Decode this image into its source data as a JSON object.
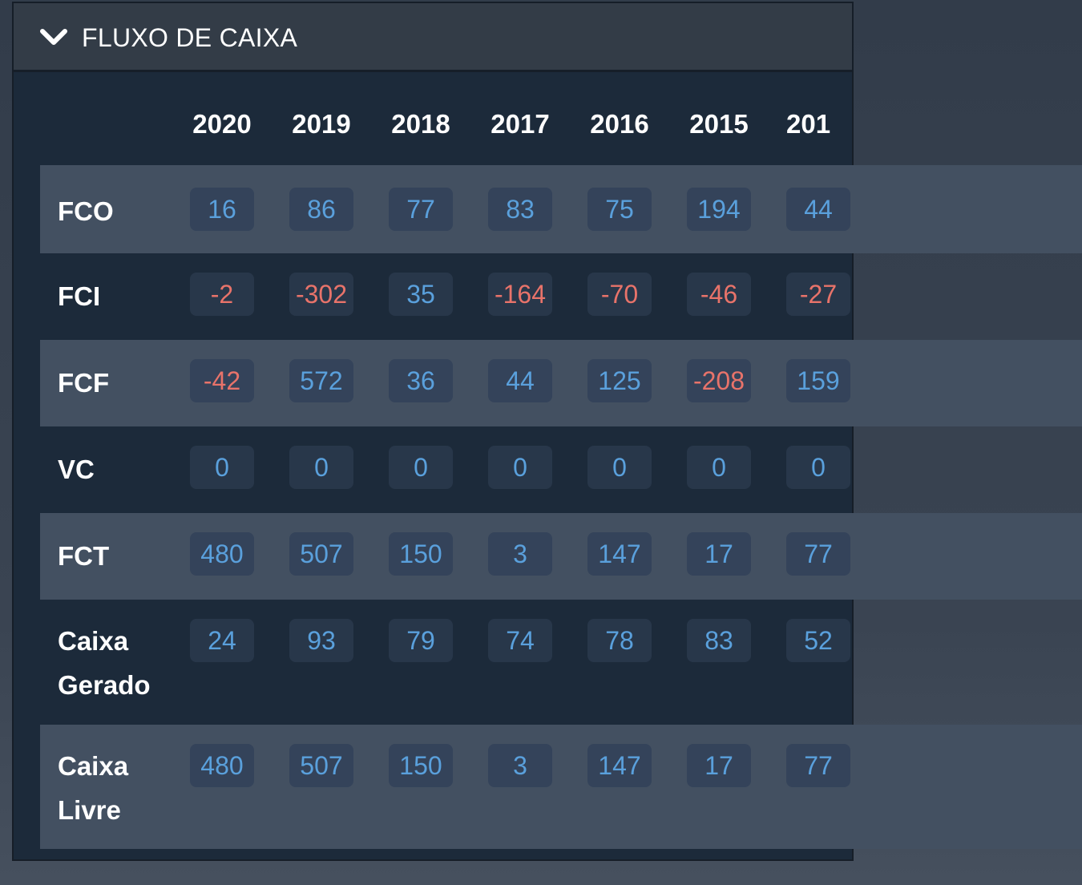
{
  "header": {
    "title": "FLUXO DE CAIXA",
    "toggle_icon": "chevron-down-icon"
  },
  "colors": {
    "positive": "#5aa0dc",
    "negative": "#e8736a",
    "panel_bg": "#1c2a3a",
    "row_shade": "#435061"
  },
  "table": {
    "years": [
      "2020",
      "2019",
      "2018",
      "2017",
      "2016",
      "2015",
      "201"
    ],
    "rows": [
      {
        "label": "FCO",
        "values": [
          "16",
          "86",
          "77",
          "83",
          "75",
          "194",
          "44"
        ]
      },
      {
        "label": "FCI",
        "values": [
          "-2",
          "-302",
          "35",
          "-164",
          "-70",
          "-46",
          "-27"
        ]
      },
      {
        "label": "FCF",
        "values": [
          "-42",
          "572",
          "36",
          "44",
          "125",
          "-208",
          "159"
        ]
      },
      {
        "label": "VC",
        "values": [
          "0",
          "0",
          "0",
          "0",
          "0",
          "0",
          "0"
        ]
      },
      {
        "label": "FCT",
        "values": [
          "480",
          "507",
          "150",
          "3",
          "147",
          "17",
          "77"
        ]
      },
      {
        "label": "Caixa Gerado",
        "values": [
          "24",
          "93",
          "79",
          "74",
          "78",
          "83",
          "52"
        ]
      },
      {
        "label": "Caixa Livre",
        "values": [
          "480",
          "507",
          "150",
          "3",
          "147",
          "17",
          "77"
        ]
      }
    ]
  }
}
